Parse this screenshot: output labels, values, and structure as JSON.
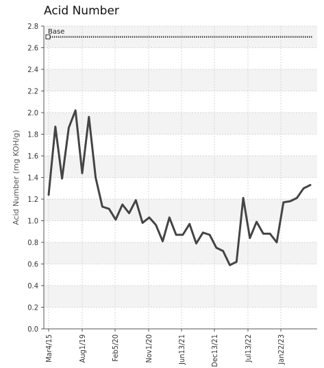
{
  "chart_data": {
    "type": "line",
    "title": "Acid Number",
    "ylabel": "Acid Number (mg KOH/g)",
    "xlabel": "",
    "ylim": [
      0,
      2.8
    ],
    "y_ticks": [
      "0.0",
      "0.2",
      "0.4",
      "0.6",
      "0.8",
      "1.0",
      "1.2",
      "1.4",
      "1.6",
      "1.8",
      "2.0",
      "2.2",
      "2.4",
      "2.6",
      "2.8"
    ],
    "x_tick_labels": [
      "Mar4/15",
      "Aug1/19",
      "Feb5/20",
      "Nov1/20",
      "Jun13/21",
      "Dec13/21",
      "Jul13/22",
      "Jan22/23"
    ],
    "grid": true,
    "legend_position": "top-left",
    "series": [
      {
        "name": "Base",
        "color": "#444444",
        "style": "dotted-with-square-marker",
        "values": [
          2.7,
          2.7
        ]
      },
      {
        "name": "",
        "color": "#444444",
        "values": [
          1.24,
          1.87,
          1.39,
          1.86,
          2.02,
          1.44,
          1.96,
          1.4,
          1.13,
          1.11,
          1.01,
          1.15,
          1.07,
          1.19,
          0.98,
          1.03,
          0.96,
          0.81,
          1.03,
          0.87,
          0.87,
          0.97,
          0.79,
          0.89,
          0.87,
          0.75,
          0.72,
          0.59,
          0.62,
          1.21,
          0.84,
          0.99,
          0.88,
          0.88,
          0.8,
          1.17,
          1.18,
          1.21,
          1.3,
          1.33
        ]
      }
    ]
  }
}
